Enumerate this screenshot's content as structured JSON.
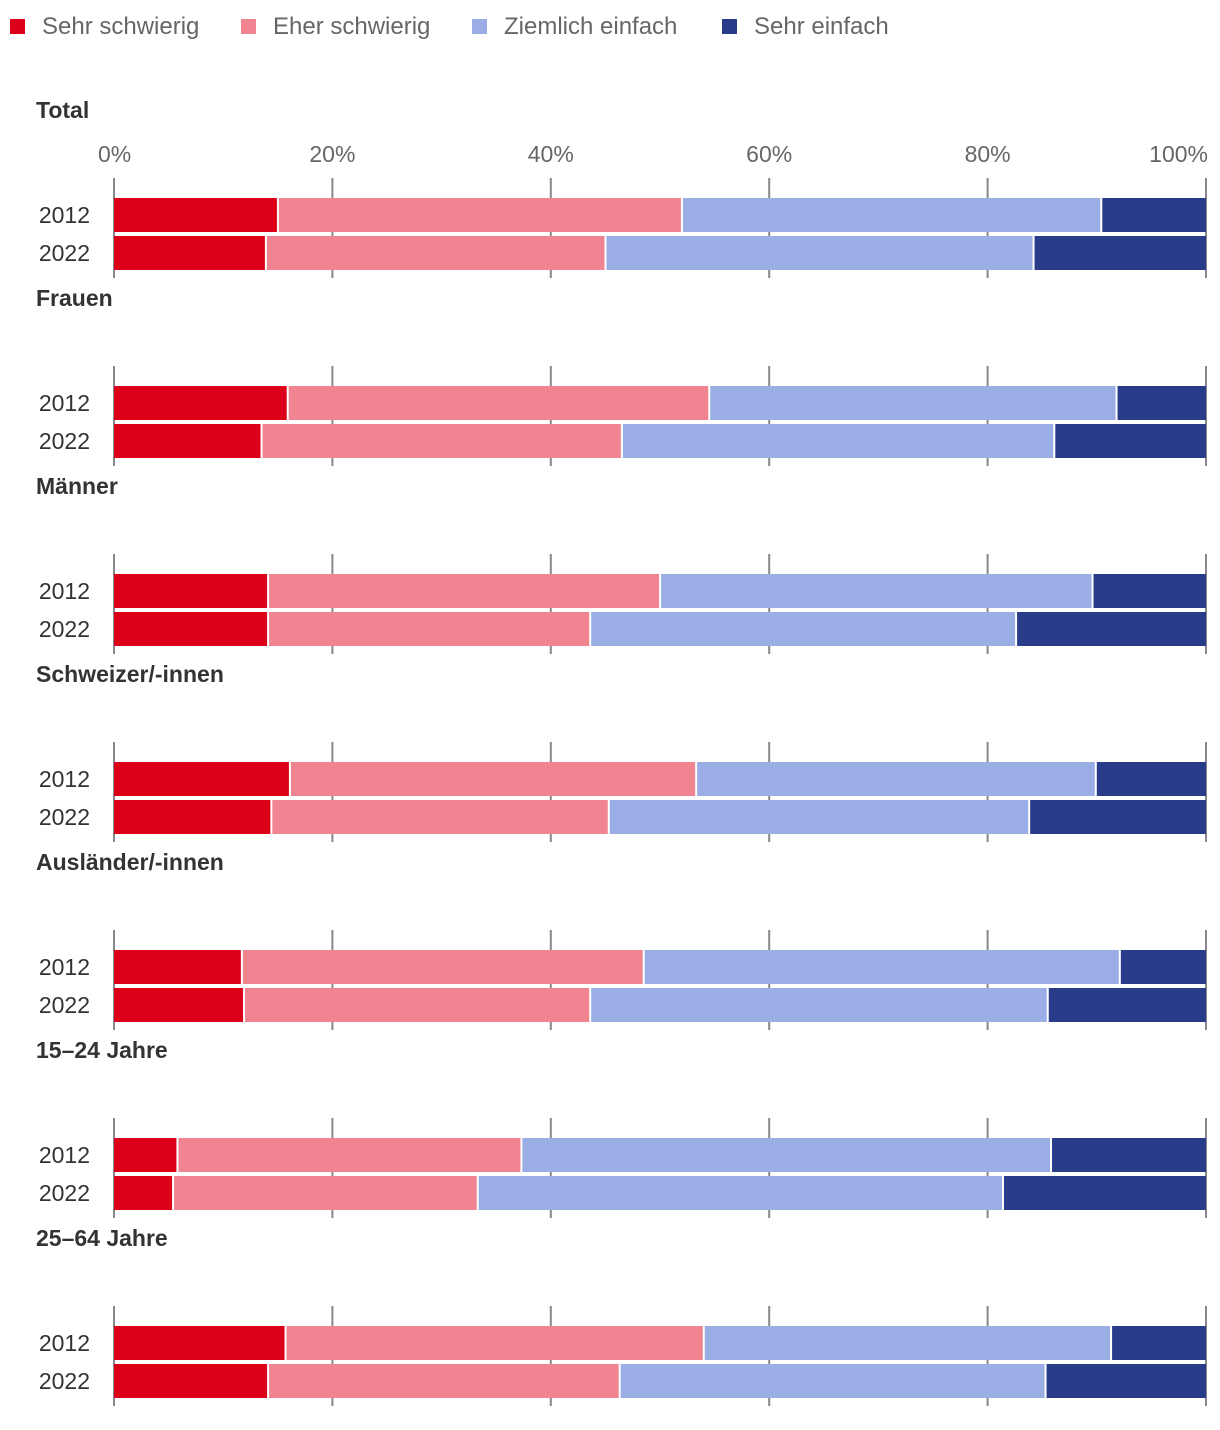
{
  "chart_data": {
    "type": "bar",
    "orientation": "horizontal",
    "stacked": true,
    "normalized": true,
    "xlim": [
      0,
      100
    ],
    "x_ticks": [
      "0%",
      "20%",
      "40%",
      "60%",
      "80%",
      "100%"
    ],
    "grid": true,
    "legend_position": "top-left",
    "series": [
      {
        "name": "Sehr schwierig",
        "color": "#dc0018"
      },
      {
        "name": "Eher schwierig",
        "color": "#f08591"
      },
      {
        "name": "Ziemlich einfach",
        "color": "#9aade4"
      },
      {
        "name": "Sehr einfach",
        "color": "#283c8a"
      }
    ],
    "panels": [
      {
        "title": "Total",
        "rows": [
          {
            "year": "2012",
            "values": [
              15.1,
              37.0,
              38.4,
              9.5
            ]
          },
          {
            "year": "2022",
            "values": [
              14.0,
              31.1,
              39.2,
              15.7
            ]
          }
        ]
      },
      {
        "title": "Frauen",
        "rows": [
          {
            "year": "2012",
            "values": [
              16.0,
              38.6,
              37.3,
              8.1
            ]
          },
          {
            "year": "2022",
            "values": [
              13.6,
              33.0,
              39.6,
              13.8
            ]
          }
        ]
      },
      {
        "title": "Männer",
        "rows": [
          {
            "year": "2012",
            "values": [
              14.2,
              35.9,
              39.6,
              10.3
            ]
          },
          {
            "year": "2022",
            "values": [
              14.2,
              29.5,
              39.0,
              17.3
            ]
          }
        ]
      },
      {
        "title": "Schweizer/-innen",
        "rows": [
          {
            "year": "2012",
            "values": [
              16.2,
              37.2,
              36.6,
              10.0
            ]
          },
          {
            "year": "2022",
            "values": [
              14.5,
              30.9,
              38.5,
              16.1
            ]
          }
        ]
      },
      {
        "title": "Ausländer/-innen",
        "rows": [
          {
            "year": "2012",
            "values": [
              11.8,
              36.8,
              43.6,
              7.8
            ]
          },
          {
            "year": "2022",
            "values": [
              12.0,
              31.7,
              41.9,
              14.4
            ]
          }
        ]
      },
      {
        "title": "15–24 Jahre",
        "rows": [
          {
            "year": "2012",
            "values": [
              5.9,
              31.5,
              48.5,
              14.1
            ]
          },
          {
            "year": "2022",
            "values": [
              5.5,
              27.9,
              48.1,
              18.5
            ]
          }
        ]
      },
      {
        "title": "25–64 Jahre",
        "rows": [
          {
            "year": "2012",
            "values": [
              15.8,
              38.3,
              37.3,
              8.6
            ]
          },
          {
            "year": "2022",
            "values": [
              14.2,
              32.2,
              39.0,
              14.6
            ]
          }
        ]
      }
    ]
  }
}
